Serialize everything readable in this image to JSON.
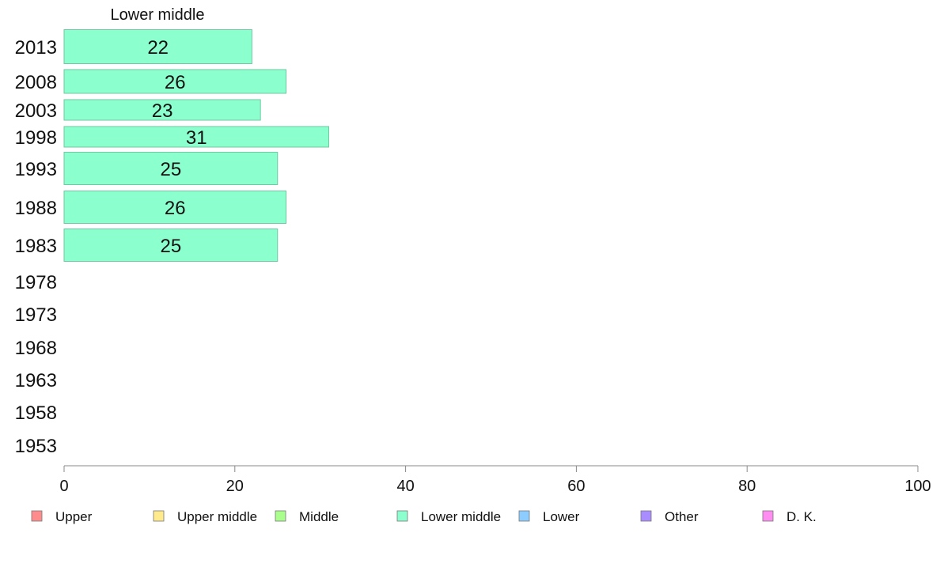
{
  "chart_data": {
    "type": "bar",
    "orientation": "horizontal",
    "title": "Lower middle",
    "categories": [
      "2013",
      "2008",
      "2003",
      "1998",
      "1993",
      "1988",
      "1983",
      "1978",
      "1973",
      "1968",
      "1963",
      "1958",
      "1953"
    ],
    "series": [
      {
        "name": "Lower middle",
        "values": [
          22,
          26,
          23,
          31,
          25,
          26,
          25,
          null,
          null,
          null,
          null,
          null,
          null
        ],
        "color": "#8cffcf"
      }
    ],
    "xlim": [
      0,
      100
    ],
    "xticks": [
      0,
      20,
      40,
      60,
      80,
      100
    ],
    "grid": false,
    "legend": {
      "placement": "bottom",
      "entries": [
        {
          "label": "Upper",
          "color": "#ff8c8c"
        },
        {
          "label": "Upper middle",
          "color": "#ffeb8c"
        },
        {
          "label": "Middle",
          "color": "#aaff8c"
        },
        {
          "label": "Lower middle",
          "color": "#8cffcf"
        },
        {
          "label": "Lower",
          "color": "#8cccff"
        },
        {
          "label": "Other",
          "color": "#a98cff"
        },
        {
          "label": "D. K.",
          "color": "#ff8cf0"
        }
      ]
    }
  }
}
